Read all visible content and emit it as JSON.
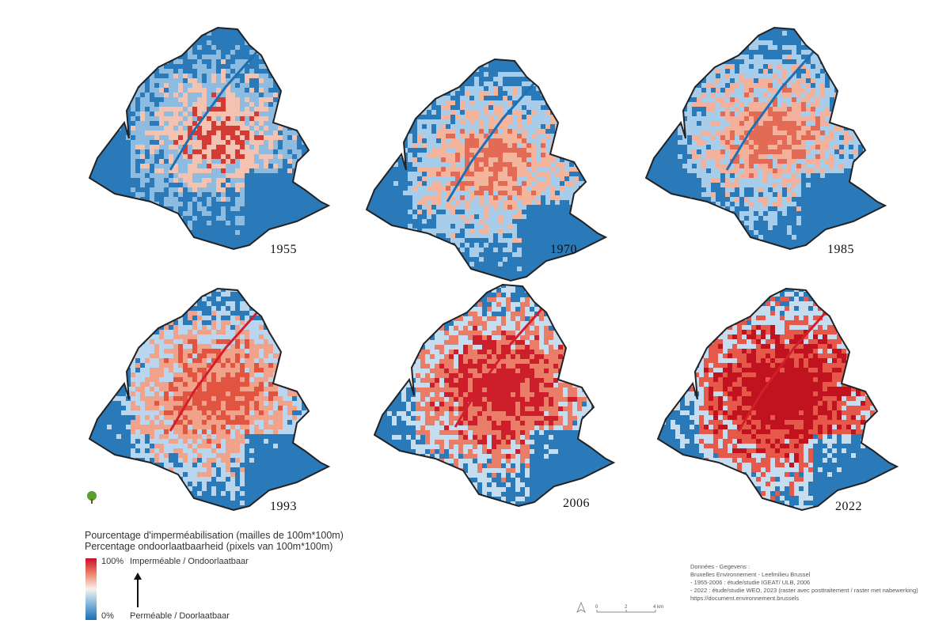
{
  "maps": [
    {
      "year": "1955",
      "palette": [
        "#2a79b9",
        "#8dbce0",
        "#f3c2b0",
        "#d43a34"
      ],
      "intensity": 0.25
    },
    {
      "year": "1970",
      "palette": [
        "#2a79b9",
        "#a7cdea",
        "#f5b49c",
        "#e36a55"
      ],
      "intensity": 0.35
    },
    {
      "year": "1985",
      "palette": [
        "#2a79b9",
        "#a7cdea",
        "#f3b09a",
        "#e36a55"
      ],
      "intensity": 0.4
    },
    {
      "year": "1993",
      "palette": [
        "#2a79b9",
        "#b9d6ee",
        "#f0a28a",
        "#e1543f"
      ],
      "intensity": 0.55
    },
    {
      "year": "2006",
      "palette": [
        "#2a79b9",
        "#c6ddf0",
        "#ea7d68",
        "#cc1f2b"
      ],
      "intensity": 0.7
    },
    {
      "year": "2022",
      "palette": [
        "#2a79b9",
        "#c6ddf0",
        "#e5584a",
        "#c1121f"
      ],
      "intensity": 0.85
    }
  ],
  "legend": {
    "title_fr": "Pourcentage d'imperméabilisation (mailles de 100m*100m)",
    "title_nl": "Percentage ondoorlaatbaarheid (pixels van 100m*100m)",
    "max_value": "100%",
    "max_label": "Imperméable / Ondoorlaatbaar",
    "min_value": "0%",
    "min_label": "Perméable / Doorlaatbaar"
  },
  "source": {
    "lines": [
      "Données - Gegevens :",
      "Bruxelles Environnement - Leefmilieu Brussel",
      "- 1955-2006 : étude/studie IGEAT/ ULB, 2006",
      "- 2022 : étude/studie WEO, 2023 (raster avec posttraitement / raster met nabewerking)",
      " https://document.environnement.brussels"
    ]
  },
  "scale": {
    "labels": [
      "0",
      "2",
      "4 km"
    ]
  },
  "colors": {
    "boundary": "#222222",
    "water_blue": "#1f6fb2"
  }
}
